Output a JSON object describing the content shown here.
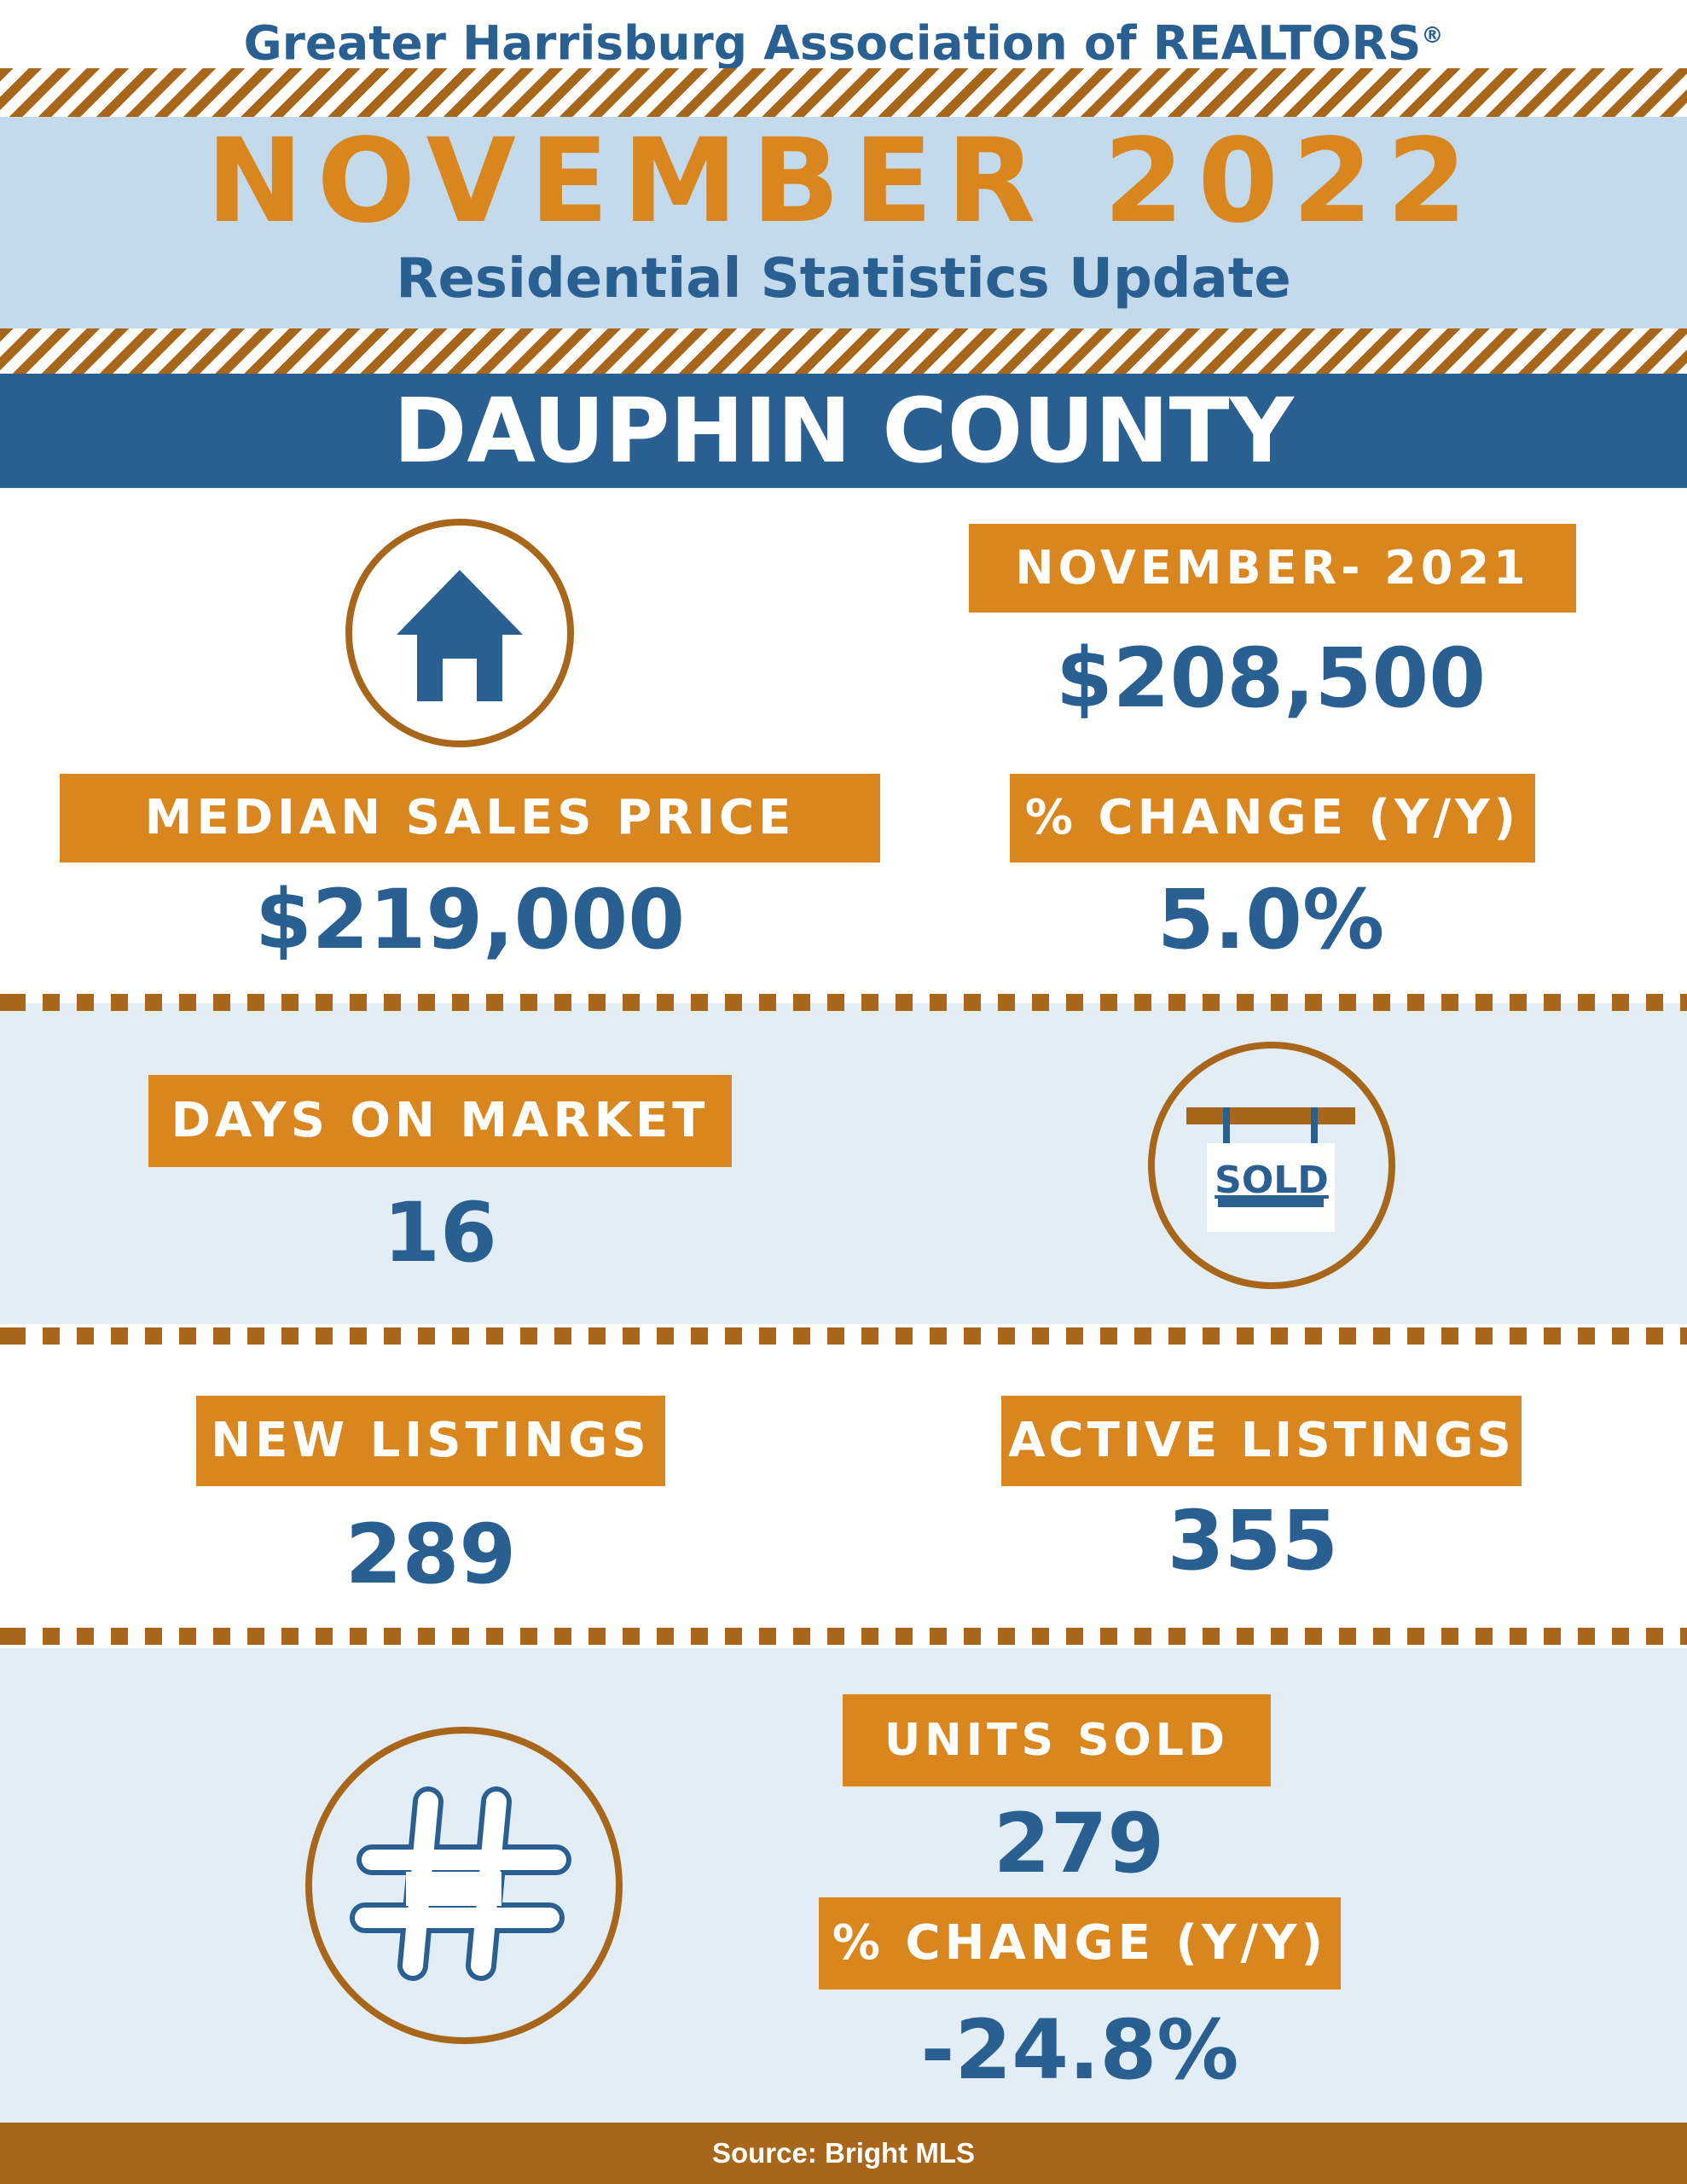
{
  "header": {
    "org_name": "Greater Harrisburg Association of REALTORS",
    "org_mark": "®",
    "month_year": "NOVEMBER 2022",
    "subtitle": "Residential Statistics Update",
    "county": "DAUPHIN COUNTY"
  },
  "median_sales": {
    "label": "MEDIAN SALES PRICE",
    "value": "$219,000",
    "prior_label": "NOVEMBER- 2021",
    "prior_value": "$208,500",
    "change_label": "% CHANGE (Y/Y)",
    "change_value": "5.0%"
  },
  "days_on_market": {
    "label": "DAYS ON MARKET",
    "value": "16",
    "sign_text": "SOLD"
  },
  "listings": {
    "new_label": "NEW LISTINGS",
    "new_value": "289",
    "active_label": "ACTIVE LISTINGS",
    "active_value": "355"
  },
  "units_sold": {
    "label": "UNITS SOLD",
    "value": "279",
    "change_label": "% CHANGE (Y/Y)",
    "change_value": "-24.8%"
  },
  "footer": {
    "source": "Source: Bright MLS"
  },
  "icons": {
    "median": "house-icon",
    "days": "sold-sign-icon",
    "units": "hashtag-icon"
  },
  "colors": {
    "accent_orange": "#d9861f",
    "brown": "#a8661a",
    "navy": "#2a5f91",
    "light_blue": "#c3d9ec",
    "pale_blue": "#e2edf6"
  }
}
